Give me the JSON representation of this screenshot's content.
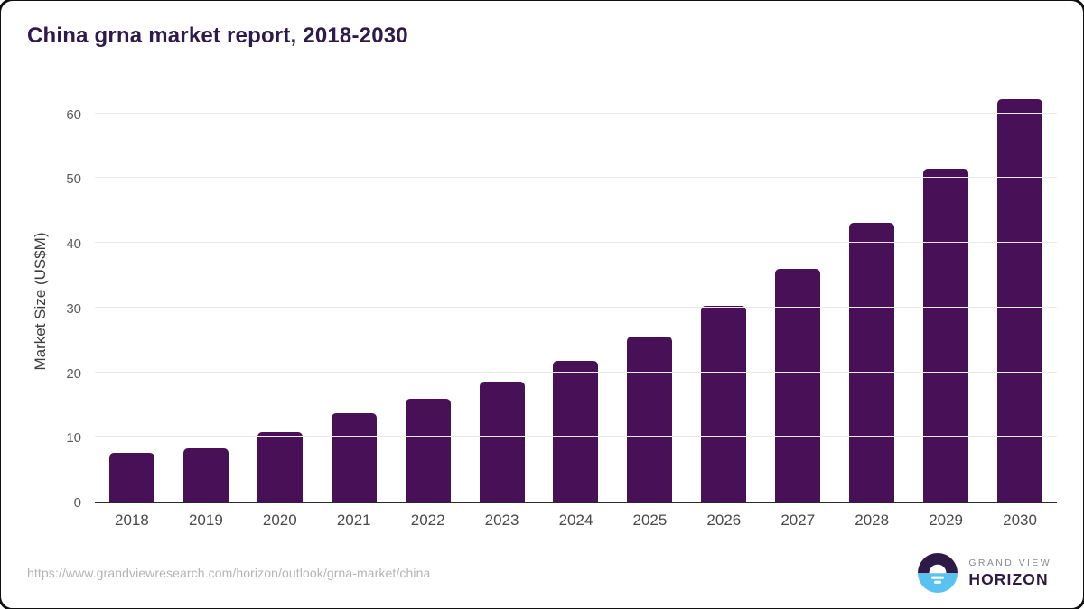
{
  "page": {
    "title": "China grna market report, 2018-2030",
    "source_url": "https://www.grandviewresearch.com/horizon/outlook/grna-market/china",
    "brand": {
      "name_top": "GRAND VIEW",
      "name_bottom": "HORIZON"
    }
  },
  "colors": {
    "bar": "#481056",
    "title_text": "#2f1a4d",
    "axis_line": "#2b2b2b",
    "gridline": "#e9e9e9",
    "tick_label": "#5a5a5a",
    "url_text": "#b4b4b4",
    "brand_top_text": "#8a8a8a",
    "brand_bottom_text": "#2e1a47",
    "logo_dark": "#2e1a47",
    "logo_blue": "#58c3f0"
  },
  "chart_data": {
    "type": "bar",
    "title": "China grna market report, 2018-2030",
    "categories": [
      "2018",
      "2019",
      "2020",
      "2021",
      "2022",
      "2023",
      "2024",
      "2025",
      "2026",
      "2027",
      "2028",
      "2029",
      "2030"
    ],
    "values": [
      7.5,
      8.2,
      10.7,
      13.6,
      15.9,
      18.6,
      21.7,
      25.5,
      30.3,
      36.0,
      43.0,
      51.4,
      62.2
    ],
    "xlabel": "",
    "ylabel": "Market Size (US$M)",
    "ylim": [
      0,
      62.5
    ],
    "yticks": [
      0,
      10,
      20,
      30,
      40,
      50,
      60
    ],
    "grid": true,
    "legend": false,
    "bar_color": "#481056"
  }
}
